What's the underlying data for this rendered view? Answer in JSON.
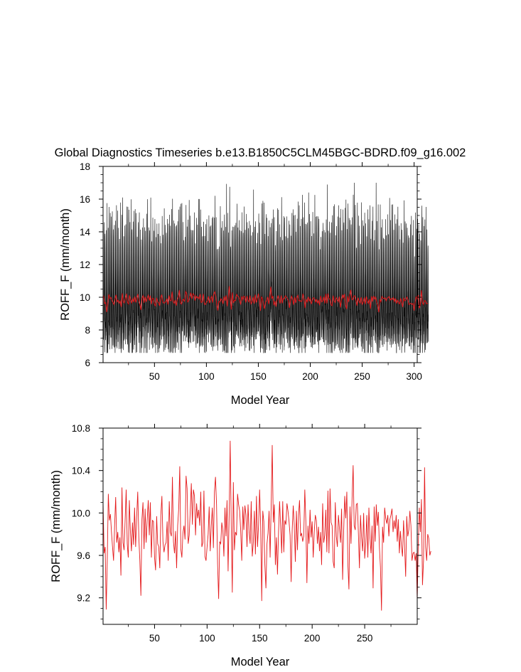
{
  "title": "Global Diagnostics Timeseries b.e13.B1850C5CLM45BGC-BDRD.f09_g16.002",
  "colors": {
    "monthly": "#000000",
    "annual": "#e41a1c"
  },
  "chart_data": [
    {
      "type": "line",
      "xlabel": "Model Year",
      "ylabel": "ROFF_F (mm/month)",
      "xlim": [
        0.5,
        303
      ],
      "ylim": [
        6,
        18
      ],
      "x_ticks": [
        50,
        100,
        150,
        200,
        250,
        300
      ],
      "y_ticks": [
        6,
        8,
        10,
        12,
        14,
        16,
        18
      ],
      "x_tick_labels": [
        "50",
        "100",
        "150",
        "200",
        "250",
        "300"
      ],
      "y_tick_labels": [
        "6",
        "8",
        "10",
        "12",
        "14",
        "16",
        "18"
      ],
      "grid": false,
      "legend": "none",
      "series": [
        {
          "color": "#000000",
          "resolution": "monthly",
          "x_start": 1,
          "x_end": 300,
          "monthly_climatology": [
            7.6,
            7.4,
            8.3,
            10.4,
            13.3,
            14.6,
            12.5,
            10.6,
            9.3,
            8.6,
            8.1,
            7.7
          ],
          "annual_means_source": "bottom"
        },
        {
          "color": "#e41a1c",
          "resolution": "annual",
          "values_source": "bottom"
        }
      ]
    },
    {
      "type": "line",
      "xlabel": "Model Year",
      "ylabel": "ROFF_F (mm/month)",
      "xlim": [
        1,
        300
      ],
      "ylim": [
        8.95,
        10.8
      ],
      "x_ticks": [
        50,
        100,
        150,
        200,
        250
      ],
      "y_ticks": [
        9.2,
        9.6,
        10.0,
        10.4,
        10.8
      ],
      "x_tick_labels": [
        "50",
        "100",
        "150",
        "200",
        "250"
      ],
      "y_tick_labels": [
        "9.2",
        "9.6",
        "10.0",
        "10.4",
        "10.8"
      ],
      "grid": false,
      "legend": "none",
      "series": [
        {
          "color": "#e41a1c",
          "x_start": 1,
          "values": [
            10.1,
            9.62,
            9.68,
            9.09,
            9.55,
            10.18,
            9.93,
            9.99,
            9.82,
            9.68,
            9.55,
            9.88,
            10.15,
            9.72,
            9.82,
            9.63,
            9.77,
            9.41,
            10.24,
            9.72,
            9.65,
            9.93,
            10.22,
            9.71,
            9.58,
            10.12,
            9.83,
            9.64,
            9.91,
            9.7,
            10.05,
            9.68,
            9.96,
            10.2,
            9.78,
            9.55,
            9.22,
            9.94,
            10.1,
            9.66,
            10.04,
            9.72,
            9.93,
            10.12,
            9.79,
            10.1,
            9.58,
            9.93,
            9.92,
            9.58,
            9.46,
            9.97,
            9.71,
            9.68,
            9.48,
            9.98,
            10.16,
            9.73,
            9.63,
            9.7,
            9.72,
            9.92,
            9.55,
            10.11,
            9.82,
            9.78,
            10.34,
            9.73,
            9.62,
            9.83,
            9.48,
            9.88,
            10.04,
            10.44,
            9.66,
            9.58,
            9.81,
            9.88,
            9.75,
            10.35,
            10.23,
            9.71,
            9.79,
            10.03,
            10.28,
            9.89,
            10.22,
            10.16,
            9.79,
            10.09,
            9.95,
            10.03,
            9.88,
            10.2,
            9.68,
            9.72,
            10.21,
            9.59,
            9.55,
            9.68,
            9.8,
            10.06,
            9.64,
            9.88,
            10.05,
            9.67,
            10.2,
            10.34,
            10.08,
            9.52,
            9.19,
            9.73,
            9.71,
            9.91,
            9.83,
            9.59,
            10.05,
            9.78,
            10.12,
            9.45,
            9.97,
            10.68,
            9.88,
            9.25,
            10.29,
            9.65,
            9.82,
            9.79,
            10.18,
            10.08,
            10.02,
            9.83,
            9.55,
            10.06,
            9.84,
            10.07,
            9.98,
            9.68,
            10.08,
            9.82,
            9.71,
            10.11,
            9.59,
            9.72,
            10.02,
            9.61,
            10.16,
            9.68,
            9.89,
            10.22,
            9.88,
            9.17,
            10.02,
            9.92,
            9.51,
            9.29,
            9.71,
            9.81,
            10.02,
            9.58,
            10.07,
            10.64,
            9.91,
            10.08,
            9.51,
            9.77,
            9.42,
            9.82,
            10.11,
            9.88,
            9.62,
            10.11,
            9.63,
            9.93,
            9.89,
            10.09,
            10.02,
            9.92,
            9.79,
            9.35,
            9.84,
            10.07,
            9.88,
            9.54,
            10.02,
            9.65,
            9.98,
            10.12,
            9.78,
            9.81,
            9.73,
            9.78,
            10.22,
            9.92,
            9.34,
            9.88,
            9.71,
            10.03,
            9.77,
            9.92,
            9.58,
            9.82,
            9.98,
            9.93,
            9.71,
            9.87,
            9.64,
            9.82,
            9.51,
            10.09,
            9.72,
            9.79,
            10.03,
            9.63,
            10.21,
            9.62,
            10.23,
            9.91,
            9.88,
            9.54,
            9.48,
            10.1,
            9.78,
            9.68,
            9.98,
            9.85,
            9.72,
            10.04,
            9.37,
            9.83,
            10.16,
            9.95,
            10.2,
            9.52,
            9.28,
            10.06,
            9.71,
            10.14,
            10.45,
            9.88,
            9.84,
            10.08,
            10.09,
            9.81,
            9.48,
            9.98,
            9.77,
            9.64,
            10.0,
            9.57,
            9.71,
            9.98,
            9.58,
            10.05,
            9.77,
            9.62,
            9.88,
            9.29,
            10.06,
            9.73,
            10.08,
            9.88,
            10.01,
            9.68,
            9.49,
            9.08,
            9.87,
            9.72,
            10.05,
            9.95,
            9.9,
            9.98,
            9.78,
            9.94,
            9.98,
            10.04,
            9.82,
            9.93,
            9.85,
            9.98,
            9.73,
            9.94,
            9.62,
            9.83,
            9.68,
            9.59,
            9.93,
            9.69,
            9.4,
            9.97,
            9.78,
            9.84,
            10.02,
            9.88,
            9.55,
            9.62,
            9.63,
            9.55,
            9.62,
            9.18,
            9.71,
            10.05,
            9.82,
            10.13,
            9.32,
            9.55,
            10.43,
            9.68,
            9.55,
            9.8,
            9.76,
            9.6,
            9.64
          ]
        }
      ]
    }
  ]
}
